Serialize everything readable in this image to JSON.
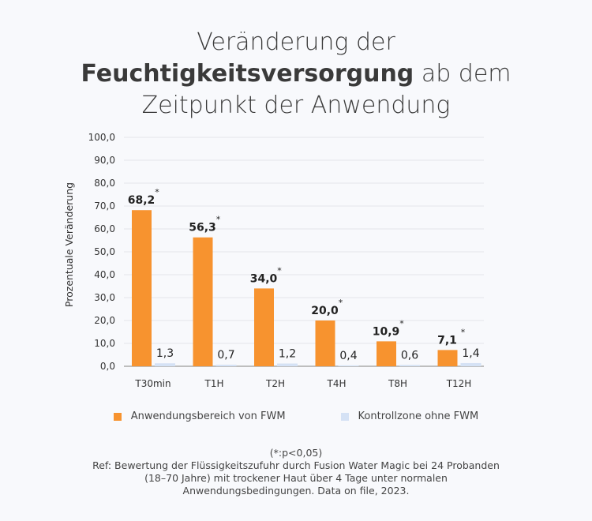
{
  "title": {
    "line1": "Veränderung der",
    "bold": "Feuchtigkeitsversorgung",
    "line2_rest": " ab dem",
    "line3": "Zeitpunkt der Anwendung"
  },
  "colors": {
    "fwm": "#f7932f",
    "control": "#d5e2f5",
    "grid": "#e3e5ea"
  },
  "chart_data": {
    "type": "bar",
    "title": "Veränderung der Feuchtigkeitsversorgung ab dem Zeitpunkt der Anwendung",
    "xlabel": "",
    "ylabel": "Prozentuale Veränderung",
    "ylim": [
      0,
      100
    ],
    "yticks": [
      "0,0",
      "10,0",
      "20,0",
      "30,0",
      "40,0",
      "50,0",
      "60,0",
      "70,0",
      "80,0",
      "90,0",
      "100,0"
    ],
    "categories": [
      "T30min",
      "T1H",
      "T2H",
      "T4H",
      "T8H",
      "T12H"
    ],
    "series": [
      {
        "name": "Anwendungsbereich von FWM",
        "values": [
          68.2,
          56.3,
          34.0,
          20.0,
          10.9,
          7.1
        ],
        "labels": [
          "68,2",
          "56,3",
          "34,0",
          "20,0",
          "10,9",
          "7,1"
        ],
        "significance": [
          "*",
          "*",
          "*",
          "*",
          "*",
          "*"
        ]
      },
      {
        "name": "Kontrollzone ohne FWM",
        "values": [
          1.3,
          0.7,
          1.2,
          0.4,
          0.6,
          1.4
        ],
        "labels": [
          "1,3",
          "0,7",
          "1,2",
          "0,4",
          "0,6",
          "1,4"
        ]
      }
    ],
    "grid": true,
    "legend": "bottom"
  },
  "notes": {
    "significance": "(*:p<0,05)",
    "ref": "Ref: Bewertung der Flüssigkeitszufuhr durch Fusion Water Magic bei 24 Probanden",
    "ref2": "(18–70 Jahre) mit trockener Haut über 4 Tage unter normalen",
    "ref3": "Anwendungsbedingungen. Data on file, 2023."
  }
}
